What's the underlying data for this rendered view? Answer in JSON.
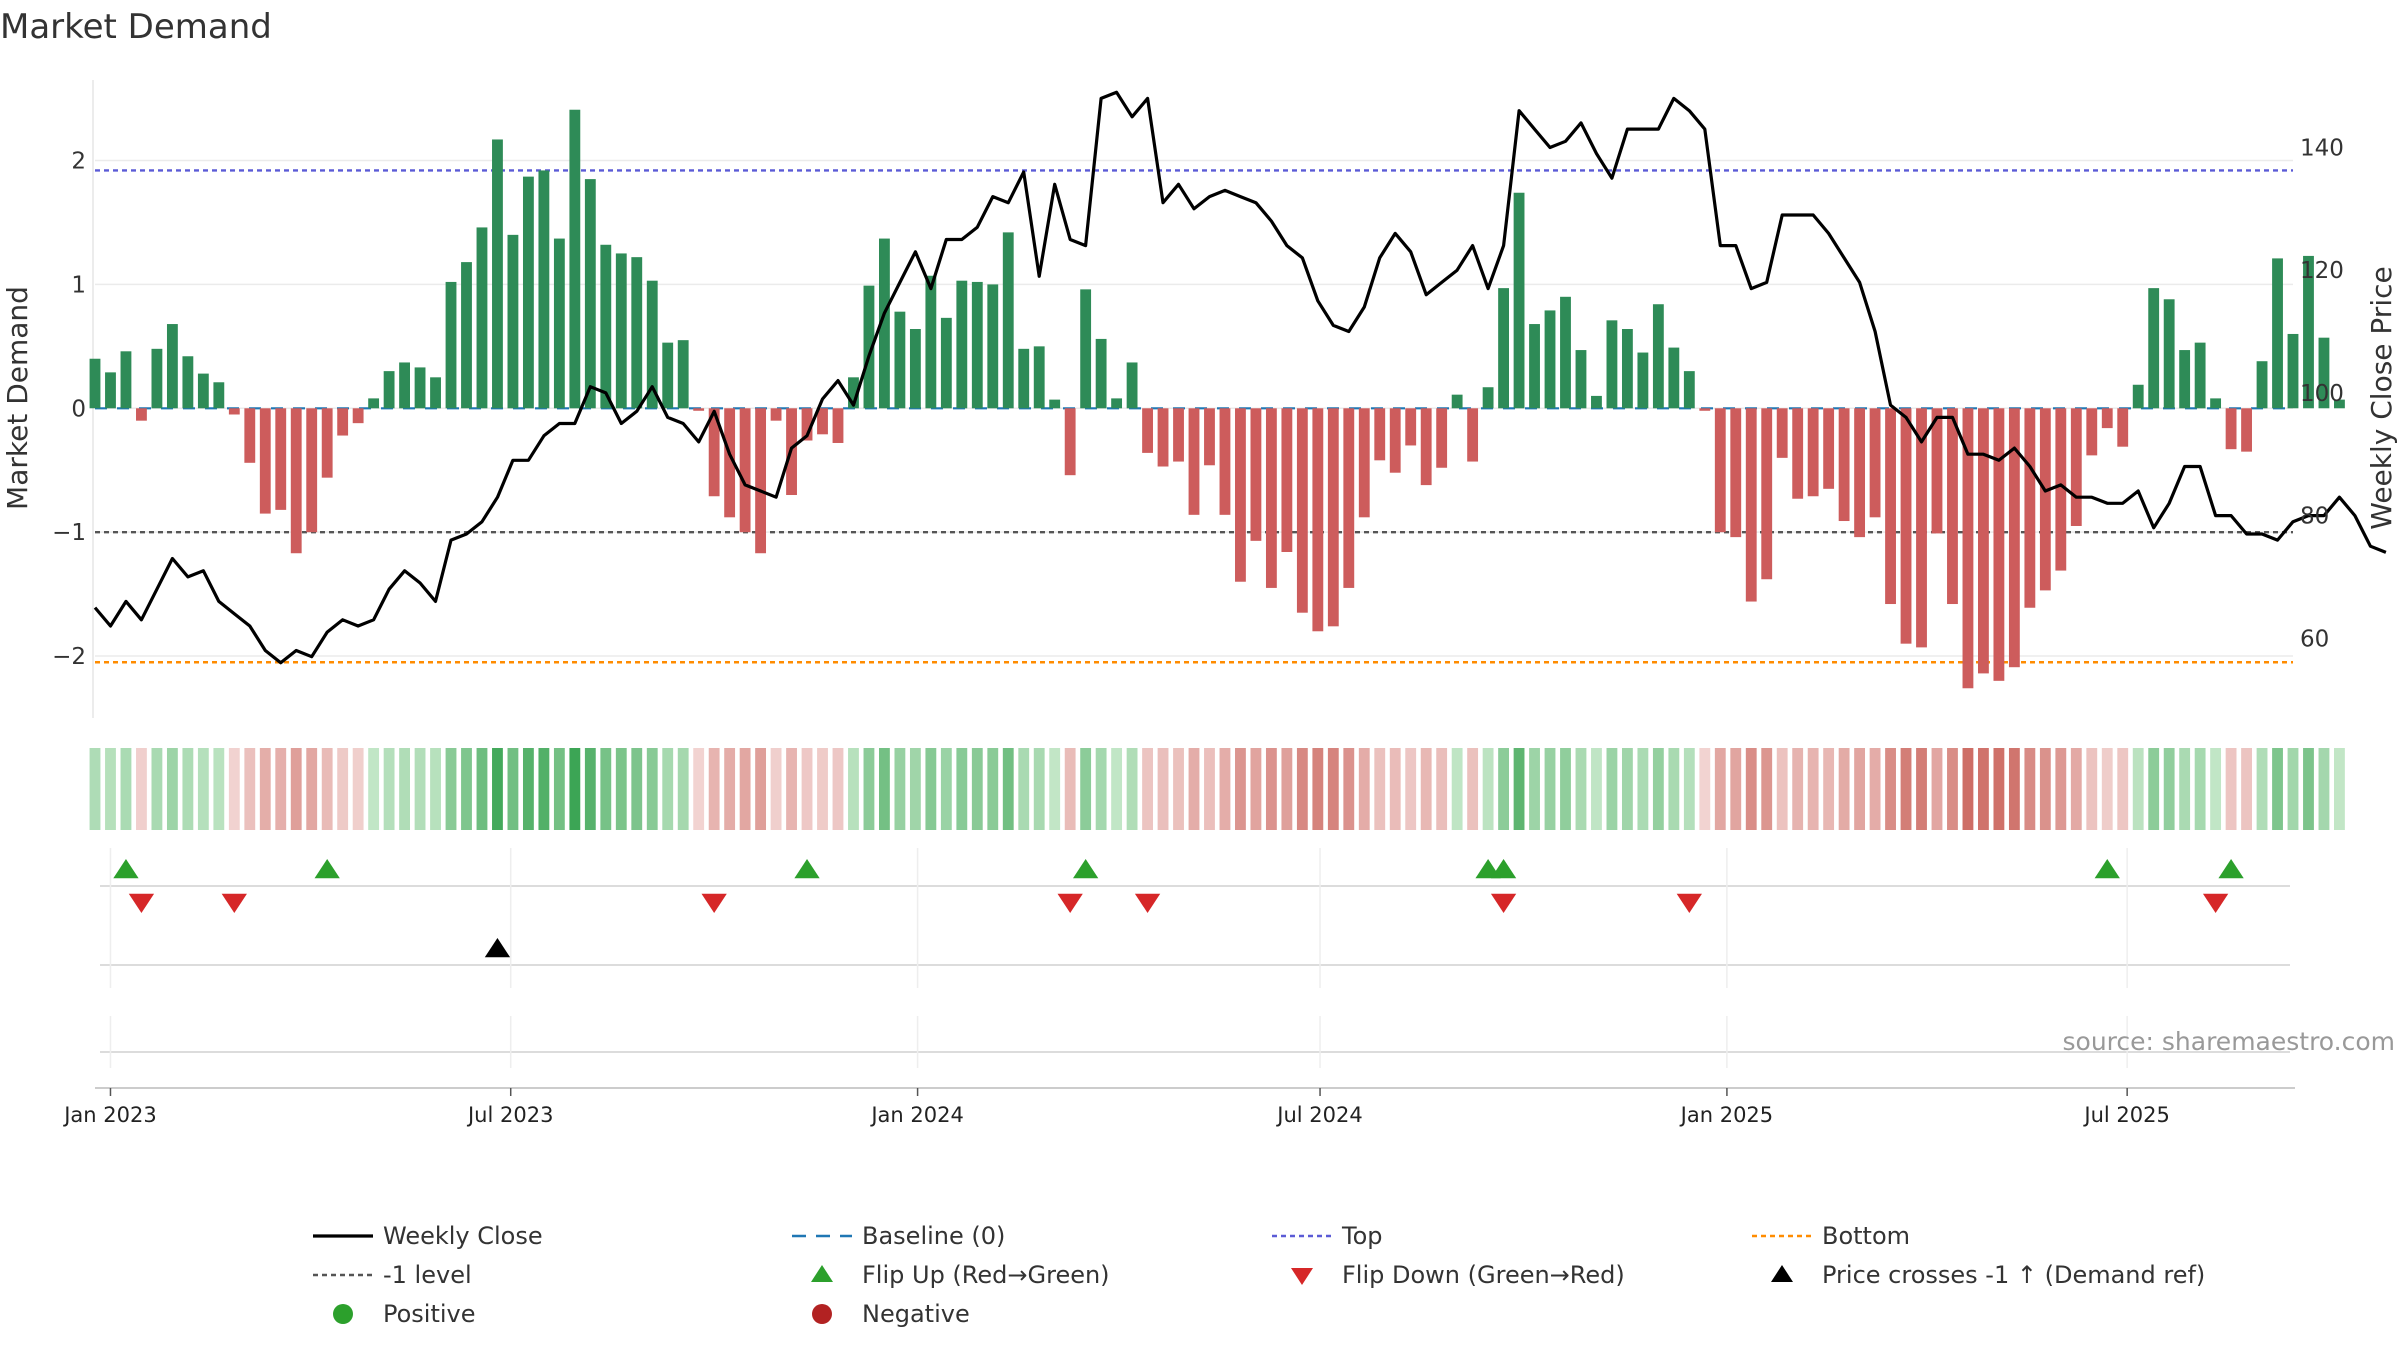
{
  "chart_data": {
    "type": "bar",
    "title": "Market Demand",
    "ylabel": "Market Demand",
    "y2label": "Weekly Close Price",
    "ylim": [
      -2.5,
      2.65
    ],
    "y2lim": [
      47,
      151
    ],
    "yticks": [
      2,
      1,
      0,
      -1,
      -2
    ],
    "ytick_labels": [
      "2",
      "1",
      "0",
      "−1",
      "−2"
    ],
    "y2ticks": [
      140,
      120,
      100,
      80,
      60
    ],
    "y2tick_labels": [
      "140",
      "120",
      "100",
      "80",
      "60"
    ],
    "x_start": "2022-12-25",
    "x_step_days": 7,
    "x_end": "2025-09-14",
    "date_ticks": [
      {
        "label": "Jan 2023",
        "date": "2023-01-01"
      },
      {
        "label": "Jul 2023",
        "date": "2023-07-01"
      },
      {
        "label": "Jan 2024",
        "date": "2024-01-01"
      },
      {
        "label": "Jul 2024",
        "date": "2024-07-01"
      },
      {
        "label": "Jan 2025",
        "date": "2025-01-01"
      },
      {
        "label": "Jul 2025",
        "date": "2025-07-01"
      }
    ],
    "levels": {
      "top": 1.92,
      "minus_one": -1.0,
      "bottom": -2.05,
      "baseline": 0
    },
    "series": [
      {
        "name": "Market Demand",
        "values": [
          0.4,
          0.29,
          0.46,
          -0.1,
          0.48,
          0.68,
          0.42,
          0.28,
          0.21,
          -0.05,
          -0.44,
          -0.85,
          -0.82,
          -1.17,
          -1.0,
          -0.56,
          -0.22,
          -0.12,
          0.08,
          0.3,
          0.37,
          0.33,
          0.25,
          1.02,
          1.18,
          1.46,
          2.17,
          1.4,
          1.87,
          1.92,
          1.37,
          2.41,
          1.85,
          1.32,
          1.25,
          1.22,
          1.03,
          0.53,
          0.55,
          -0.02,
          -0.71,
          -0.88,
          -1.0,
          -1.17,
          -0.1,
          -0.7,
          -0.26,
          -0.21,
          -0.28,
          0.25,
          0.99,
          1.37,
          0.78,
          0.64,
          1.07,
          0.73,
          1.03,
          1.02,
          1.0,
          1.42,
          0.48,
          0.5,
          0.07,
          -0.54,
          0.96,
          0.56,
          0.08,
          0.37,
          -0.36,
          -0.47,
          -0.43,
          -0.86,
          -0.46,
          -0.86,
          -1.4,
          -1.07,
          -1.45,
          -1.16,
          -1.65,
          -1.8,
          -1.76,
          -1.45,
          -0.88,
          -0.42,
          -0.52,
          -0.3,
          -0.62,
          -0.48,
          0.11,
          -0.43,
          0.17,
          0.97,
          1.74,
          0.68,
          0.79,
          0.9,
          0.47,
          0.1,
          0.71,
          0.64,
          0.45,
          0.84,
          0.49,
          0.3,
          -0.02,
          -1.0,
          -1.04,
          -1.56,
          -1.38,
          -0.4,
          -0.73,
          -0.71,
          -0.65,
          -0.91,
          -1.04,
          -0.88,
          -1.58,
          -1.9,
          -1.93,
          -1.01,
          -1.58,
          -2.26,
          -2.14,
          -2.2,
          -2.09,
          -1.61,
          -1.47,
          -1.31,
          -0.95,
          -0.38,
          -0.16,
          -0.31,
          0.19,
          0.97,
          0.88,
          0.47,
          0.53,
          0.08,
          -0.33,
          -0.35,
          0.38,
          1.21,
          0.6,
          1.23,
          0.57,
          0.07
        ]
      },
      {
        "name": "Weekly Close",
        "values": [
          65,
          62,
          66,
          63,
          68,
          73,
          70,
          71,
          66,
          64,
          62,
          58,
          56,
          58,
          57,
          61,
          63,
          62,
          63,
          68,
          71,
          69,
          66,
          76,
          77,
          79,
          83,
          89,
          89,
          93,
          95,
          95,
          101,
          100,
          95,
          97,
          101,
          96,
          95,
          92,
          97,
          90,
          85,
          84,
          83,
          91,
          93,
          99,
          102,
          98,
          106,
          113,
          118,
          123,
          117,
          125,
          125,
          127,
          132,
          131,
          136,
          119,
          134,
          125,
          124,
          148,
          149,
          145,
          148,
          131,
          134,
          130,
          132,
          133,
          132,
          131,
          128,
          124,
          122,
          115,
          111,
          110,
          114,
          122,
          126,
          123,
          116,
          118,
          120,
          124,
          117,
          124,
          146,
          143,
          140,
          141,
          144,
          139,
          135,
          143,
          143,
          143,
          148,
          146,
          143,
          124,
          124,
          117,
          118,
          129,
          129,
          129,
          126,
          122,
          118,
          110,
          98,
          96,
          92,
          96,
          96,
          90,
          90,
          89,
          91,
          88,
          84,
          85,
          83,
          83,
          82,
          82,
          84,
          78,
          82,
          88,
          88,
          80,
          80,
          77,
          77,
          76,
          79,
          80,
          80,
          83,
          80,
          75,
          74
        ]
      }
    ],
    "regime_strip": {
      "name": "Demand intensity strip"
    },
    "markers": {
      "flip_up": [
        "2023-01-08",
        "2023-04-09",
        "2023-11-12",
        "2024-03-17",
        "2024-09-15",
        "2024-09-22",
        "2025-06-22",
        "2025-08-17"
      ],
      "flip_down": [
        "2023-01-15",
        "2023-02-26",
        "2023-10-01",
        "2024-03-10",
        "2024-04-14",
        "2024-09-22",
        "2024-12-15",
        "2025-08-10"
      ],
      "price_cross": [
        "2023-06-25"
      ]
    },
    "source": "source: sharemaestro.com"
  },
  "legend": [
    {
      "label": "Weekly Close",
      "icon": "solid-line-icon",
      "color": "#000000"
    },
    {
      "label": "Baseline (0)",
      "icon": "dashed-line-icon",
      "color": "#1f77b4"
    },
    {
      "label": "Top",
      "icon": "dotted-line-icon",
      "color": "#5b5bd6"
    },
    {
      "label": "Bottom",
      "icon": "dotted-line-icon",
      "color": "#ff8c00"
    },
    {
      "label": "-1 level",
      "icon": "dotted-line-icon",
      "color": "#555555"
    },
    {
      "label": "Flip Up (Red→Green)",
      "icon": "triangle-up-icon",
      "color": "#2ca02c"
    },
    {
      "label": "Flip Down (Green→Red)",
      "icon": "triangle-down-icon",
      "color": "#d62728"
    },
    {
      "label": "Price crosses -1 ↑ (Demand ref)",
      "icon": "triangle-up-icon",
      "color": "#000000"
    },
    {
      "label": "Positive",
      "icon": "circle-icon",
      "color": "#2ca02c"
    },
    {
      "label": "Negative",
      "icon": "circle-icon",
      "color": "#b22222"
    }
  ],
  "colors": {
    "positive_bar": "#2e8b57",
    "negative_bar": "#cd5c5c",
    "price_line": "#000000",
    "grid": "#ebebeb",
    "flip_up": "#2ca02c",
    "flip_down": "#d62728",
    "cross": "#000000"
  }
}
